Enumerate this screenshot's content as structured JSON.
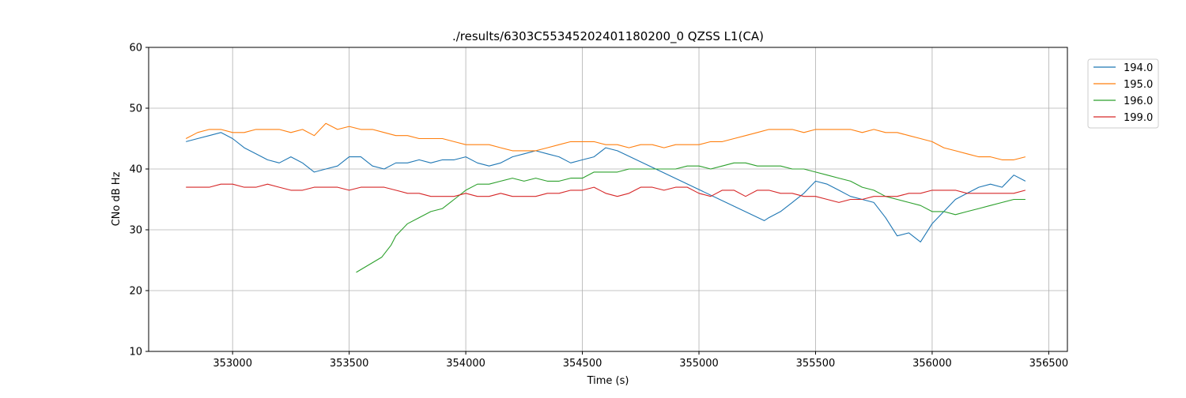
{
  "chart_data": {
    "type": "line",
    "title": "./results/6303C55345202401180200_0 QZSS L1(CA)",
    "xlabel": "Time (s)",
    "ylabel": "CNo dB Hz",
    "xlim": [
      352640,
      356580
    ],
    "ylim": [
      10,
      60
    ],
    "x_ticks": [
      353000,
      353500,
      354000,
      354500,
      355000,
      355500,
      356000,
      356500
    ],
    "y_ticks": [
      10,
      20,
      30,
      40,
      50,
      60
    ],
    "grid": true,
    "legend_position": "upper-right-outside",
    "series": [
      {
        "name": "194.0",
        "color": "#1f77b4",
        "points": [
          [
            352800,
            44.5
          ],
          [
            352850,
            45.0
          ],
          [
            352900,
            45.5
          ],
          [
            352950,
            46.0
          ],
          [
            353000,
            45.0
          ],
          [
            353050,
            43.5
          ],
          [
            353100,
            42.5
          ],
          [
            353150,
            41.5
          ],
          [
            353200,
            41.0
          ],
          [
            353250,
            42.0
          ],
          [
            353300,
            41.0
          ],
          [
            353350,
            39.5
          ],
          [
            353400,
            40.0
          ],
          [
            353450,
            40.5
          ],
          [
            353500,
            42.0
          ],
          [
            353550,
            42.0
          ],
          [
            353600,
            40.5
          ],
          [
            353650,
            40.0
          ],
          [
            353700,
            41.0
          ],
          [
            353750,
            41.0
          ],
          [
            353800,
            41.5
          ],
          [
            353850,
            41.0
          ],
          [
            353900,
            41.5
          ],
          [
            353950,
            41.5
          ],
          [
            354000,
            42.0
          ],
          [
            354050,
            41.0
          ],
          [
            354100,
            40.5
          ],
          [
            354150,
            41.0
          ],
          [
            354200,
            42.0
          ],
          [
            354250,
            42.5
          ],
          [
            354300,
            43.0
          ],
          [
            354350,
            42.5
          ],
          [
            354400,
            42.0
          ],
          [
            354450,
            41.0
          ],
          [
            354500,
            41.5
          ],
          [
            354550,
            42.0
          ],
          [
            354600,
            43.5
          ],
          [
            354650,
            43.0
          ],
          [
            355280,
            31.5
          ],
          [
            355300,
            32.0
          ],
          [
            355350,
            33.0
          ],
          [
            355400,
            34.5
          ],
          [
            355450,
            36.0
          ],
          [
            355500,
            38.0
          ],
          [
            355550,
            37.5
          ],
          [
            355600,
            36.5
          ],
          [
            355650,
            35.5
          ],
          [
            355700,
            35.0
          ],
          [
            355750,
            34.5
          ],
          [
            355800,
            32.0
          ],
          [
            355850,
            29.0
          ],
          [
            355900,
            29.5
          ],
          [
            355950,
            28.0
          ],
          [
            356000,
            31.0
          ],
          [
            356050,
            33.0
          ],
          [
            356100,
            35.0
          ],
          [
            356150,
            36.0
          ],
          [
            356200,
            37.0
          ],
          [
            356250,
            37.5
          ],
          [
            356300,
            37.0
          ],
          [
            356350,
            39.0
          ],
          [
            356400,
            38.0
          ]
        ]
      },
      {
        "name": "195.0",
        "color": "#ff7f0e",
        "points": [
          [
            352800,
            45.0
          ],
          [
            352850,
            46.0
          ],
          [
            352900,
            46.5
          ],
          [
            352950,
            46.5
          ],
          [
            353000,
            46.0
          ],
          [
            353050,
            46.0
          ],
          [
            353100,
            46.5
          ],
          [
            353150,
            46.5
          ],
          [
            353200,
            46.5
          ],
          [
            353250,
            46.0
          ],
          [
            353300,
            46.5
          ],
          [
            353350,
            45.5
          ],
          [
            353400,
            47.5
          ],
          [
            353450,
            46.5
          ],
          [
            353500,
            47.0
          ],
          [
            353550,
            46.5
          ],
          [
            353600,
            46.5
          ],
          [
            353650,
            46.0
          ],
          [
            353700,
            45.5
          ],
          [
            353750,
            45.5
          ],
          [
            353800,
            45.0
          ],
          [
            353850,
            45.0
          ],
          [
            353900,
            45.0
          ],
          [
            353950,
            44.5
          ],
          [
            354000,
            44.0
          ],
          [
            354050,
            44.0
          ],
          [
            354100,
            44.0
          ],
          [
            354150,
            43.5
          ],
          [
            354200,
            43.0
          ],
          [
            354250,
            43.0
          ],
          [
            354300,
            43.0
          ],
          [
            354350,
            43.5
          ],
          [
            354400,
            44.0
          ],
          [
            354450,
            44.5
          ],
          [
            354500,
            44.5
          ],
          [
            354550,
            44.5
          ],
          [
            354600,
            44.0
          ],
          [
            354650,
            44.0
          ],
          [
            354700,
            43.5
          ],
          [
            354750,
            44.0
          ],
          [
            354800,
            44.0
          ],
          [
            354850,
            43.5
          ],
          [
            354900,
            44.0
          ],
          [
            354950,
            44.0
          ],
          [
            355000,
            44.0
          ],
          [
            355050,
            44.5
          ],
          [
            355100,
            44.5
          ],
          [
            355150,
            45.0
          ],
          [
            355200,
            45.5
          ],
          [
            355250,
            46.0
          ],
          [
            355300,
            46.5
          ],
          [
            355350,
            46.5
          ],
          [
            355400,
            46.5
          ],
          [
            355450,
            46.0
          ],
          [
            355500,
            46.5
          ],
          [
            355550,
            46.5
          ],
          [
            355600,
            46.5
          ],
          [
            355650,
            46.5
          ],
          [
            355700,
            46.0
          ],
          [
            355750,
            46.5
          ],
          [
            355800,
            46.0
          ],
          [
            355850,
            46.0
          ],
          [
            355900,
            45.5
          ],
          [
            355950,
            45.0
          ],
          [
            356000,
            44.5
          ],
          [
            356050,
            43.5
          ],
          [
            356100,
            43.0
          ],
          [
            356150,
            42.5
          ],
          [
            356200,
            42.0
          ],
          [
            356250,
            42.0
          ],
          [
            356300,
            41.5
          ],
          [
            356350,
            41.5
          ],
          [
            356400,
            42.0
          ]
        ]
      },
      {
        "name": "196.0",
        "color": "#2ca02c",
        "points": [
          [
            353530,
            23.0
          ],
          [
            353640,
            25.5
          ],
          [
            353680,
            27.5
          ],
          [
            353700,
            29.0
          ],
          [
            353750,
            31.0
          ],
          [
            353800,
            32.0
          ],
          [
            353850,
            33.0
          ],
          [
            353900,
            33.5
          ],
          [
            353950,
            35.0
          ],
          [
            354000,
            36.5
          ],
          [
            354050,
            37.5
          ],
          [
            354100,
            37.5
          ],
          [
            354150,
            38.0
          ],
          [
            354200,
            38.5
          ],
          [
            354250,
            38.0
          ],
          [
            354300,
            38.5
          ],
          [
            354350,
            38.0
          ],
          [
            354400,
            38.0
          ],
          [
            354450,
            38.5
          ],
          [
            354500,
            38.5
          ],
          [
            354550,
            39.5
          ],
          [
            354600,
            39.5
          ],
          [
            354650,
            39.5
          ],
          [
            354700,
            40.0
          ],
          [
            354750,
            40.0
          ],
          [
            354800,
            40.0
          ],
          [
            354850,
            40.0
          ],
          [
            354900,
            40.0
          ],
          [
            354950,
            40.5
          ],
          [
            355000,
            40.5
          ],
          [
            355050,
            40.0
          ],
          [
            355100,
            40.5
          ],
          [
            355150,
            41.0
          ],
          [
            355200,
            41.0
          ],
          [
            355250,
            40.5
          ],
          [
            355300,
            40.5
          ],
          [
            355350,
            40.5
          ],
          [
            355400,
            40.0
          ],
          [
            355450,
            40.0
          ],
          [
            355500,
            39.5
          ],
          [
            355550,
            39.0
          ],
          [
            355600,
            38.5
          ],
          [
            355650,
            38.0
          ],
          [
            355700,
            37.0
          ],
          [
            355750,
            36.5
          ],
          [
            355800,
            35.5
          ],
          [
            355850,
            35.0
          ],
          [
            355900,
            34.5
          ],
          [
            355950,
            34.0
          ],
          [
            356000,
            33.0
          ],
          [
            356050,
            33.0
          ],
          [
            356100,
            32.5
          ],
          [
            356150,
            33.0
          ],
          [
            356200,
            33.5
          ],
          [
            356250,
            34.0
          ],
          [
            356300,
            34.5
          ],
          [
            356350,
            35.0
          ],
          [
            356400,
            35.0
          ]
        ]
      },
      {
        "name": "199.0",
        "color": "#d62728",
        "points": [
          [
            352800,
            37.0
          ],
          [
            352850,
            37.0
          ],
          [
            352900,
            37.0
          ],
          [
            352950,
            37.5
          ],
          [
            353000,
            37.5
          ],
          [
            353050,
            37.0
          ],
          [
            353100,
            37.0
          ],
          [
            353150,
            37.5
          ],
          [
            353200,
            37.0
          ],
          [
            353250,
            36.5
          ],
          [
            353300,
            36.5
          ],
          [
            353350,
            37.0
          ],
          [
            353400,
            37.0
          ],
          [
            353450,
            37.0
          ],
          [
            353500,
            36.5
          ],
          [
            353550,
            37.0
          ],
          [
            353600,
            37.0
          ],
          [
            353650,
            37.0
          ],
          [
            353700,
            36.5
          ],
          [
            353750,
            36.0
          ],
          [
            353800,
            36.0
          ],
          [
            353850,
            35.5
          ],
          [
            353900,
            35.5
          ],
          [
            353950,
            35.5
          ],
          [
            354000,
            36.0
          ],
          [
            354050,
            35.5
          ],
          [
            354100,
            35.5
          ],
          [
            354150,
            36.0
          ],
          [
            354200,
            35.5
          ],
          [
            354250,
            35.5
          ],
          [
            354300,
            35.5
          ],
          [
            354350,
            36.0
          ],
          [
            354400,
            36.0
          ],
          [
            354450,
            36.5
          ],
          [
            354500,
            36.5
          ],
          [
            354550,
            37.0
          ],
          [
            354600,
            36.0
          ],
          [
            354650,
            35.5
          ],
          [
            354700,
            36.0
          ],
          [
            354750,
            37.0
          ],
          [
            354800,
            37.0
          ],
          [
            354850,
            36.5
          ],
          [
            354900,
            37.0
          ],
          [
            354950,
            37.0
          ],
          [
            355000,
            36.0
          ],
          [
            355050,
            35.5
          ],
          [
            355100,
            36.5
          ],
          [
            355150,
            36.5
          ],
          [
            355200,
            35.5
          ],
          [
            355250,
            36.5
          ],
          [
            355300,
            36.5
          ],
          [
            355350,
            36.0
          ],
          [
            355400,
            36.0
          ],
          [
            355450,
            35.5
          ],
          [
            355500,
            35.5
          ],
          [
            355550,
            35.0
          ],
          [
            355600,
            34.5
          ],
          [
            355650,
            35.0
          ],
          [
            355700,
            35.0
          ],
          [
            355750,
            35.5
          ],
          [
            355800,
            35.5
          ],
          [
            355850,
            35.5
          ],
          [
            355900,
            36.0
          ],
          [
            355950,
            36.0
          ],
          [
            356000,
            36.5
          ],
          [
            356050,
            36.5
          ],
          [
            356100,
            36.5
          ],
          [
            356150,
            36.0
          ],
          [
            356200,
            36.0
          ],
          [
            356250,
            36.0
          ],
          [
            356300,
            36.0
          ],
          [
            356350,
            36.0
          ],
          [
            356400,
            36.5
          ]
        ]
      }
    ]
  }
}
